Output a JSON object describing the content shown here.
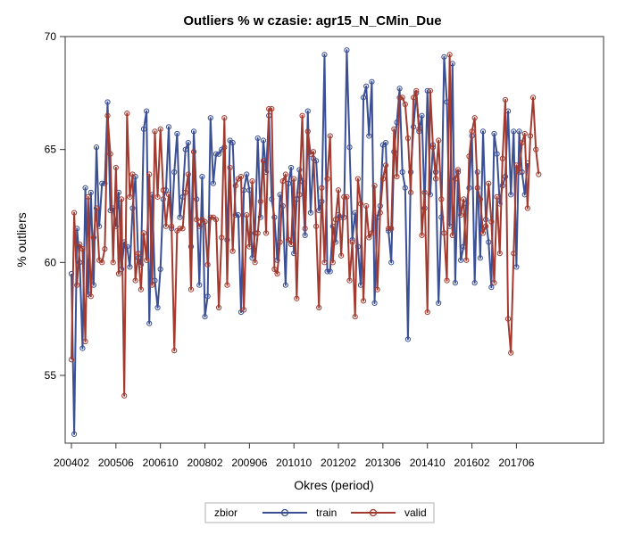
{
  "chart_data": {
    "type": "line",
    "title": "Outliers % w czasie: agr15_N_CMin_Due",
    "xlabel": "Okres (period)",
    "ylabel": "% outliers",
    "ylim": [
      52,
      70
    ],
    "yticks": [
      55,
      60,
      65,
      70
    ],
    "xticks": [
      "200402",
      "200506",
      "200610",
      "200802",
      "200906",
      "201010",
      "201202",
      "201306",
      "201410",
      "201602",
      "201706"
    ],
    "x_start": "2004-02",
    "x_step": "1 month",
    "x_count": 167,
    "legend": {
      "title": "zbior",
      "position": "bottom-center"
    },
    "grid": false,
    "series": [
      {
        "name": "train",
        "color": "#3B4F94",
        "values": [
          59.5,
          52.4,
          61.5,
          60.0,
          56.2,
          63.3,
          58.6,
          63.1,
          59.0,
          65.1,
          61.6,
          63.5,
          63.5,
          67.1,
          62.3,
          62.4,
          61.6,
          63.1,
          59.7,
          60.9,
          60.7,
          59.8,
          62.4,
          63.8,
          60.2,
          59.9,
          65.9,
          66.7,
          57.3,
          63.0,
          59.2,
          58.0,
          59.7,
          62.8,
          63.2,
          66.0,
          61.5,
          64.0,
          65.7,
          62.0,
          62.9,
          65.0,
          65.3,
          60.7,
          65.8,
          62.8,
          59.0,
          63.8,
          57.6,
          58.5,
          66.4,
          63.5,
          64.8,
          64.8,
          65.0,
          65.1,
          61.0,
          65.4,
          65.3,
          62.1,
          62.1,
          57.8,
          63.2,
          63.9,
          63.2,
          60.2,
          61.3,
          65.5,
          62.0,
          65.4,
          64.0,
          66.5,
          62.8,
          62.0,
          60.1,
          63.0,
          62.5,
          59.0,
          63.5,
          64.2,
          60.4,
          62.8,
          64.1,
          63.6,
          61.2,
          66.7,
          62.2,
          64.6,
          64.5,
          62.3,
          62.7,
          69.2,
          59.6,
          59.6,
          61.6,
          60.9,
          62.1,
          62.0,
          62.0,
          69.4,
          65.1,
          61.0,
          62.2,
          60.7,
          59.0,
          67.3,
          67.8,
          65.6,
          68.0,
          58.2,
          62.0,
          62.5,
          65.2,
          65.3,
          61.4,
          60.0,
          64.9,
          66.2,
          67.7,
          64.0,
          63.3,
          56.6,
          64.0,
          66.0,
          67.5,
          65.8,
          66.5,
          62.4,
          67.6,
          63.0,
          65.2,
          64.0,
          58.2,
          62.0,
          69.1,
          67.1,
          61.6,
          68.8,
          59.1,
          64.0,
          60.1,
          60.7,
          62.6,
          63.3,
          65.6,
          59.1,
          64.0,
          60.2,
          65.8,
          61.9,
          60.9,
          58.9,
          65.7,
          64.8,
          62.6,
          63.4,
          63.8,
          66.7,
          63.0,
          65.8,
          59.8,
          65.8,
          64.0,
          63.0,
          64.4
        ]
      },
      {
        "name": "valid",
        "color": "#A23A2F",
        "values": [
          55.7,
          62.2,
          59.0,
          60.8,
          60.6,
          56.5,
          62.9,
          58.5,
          61.1,
          62.4,
          60.1,
          60.0,
          60.6,
          66.5,
          64.8,
          60.0,
          64.2,
          59.5,
          62.8,
          54.1,
          66.6,
          62.9,
          63.9,
          59.2,
          60.4,
          58.8,
          61.3,
          60.1,
          63.9,
          59.0,
          65.8,
          62.9,
          65.9,
          63.2,
          61.6,
          63.0,
          61.6,
          56.1,
          61.4,
          61.5,
          61.5,
          63.1,
          63.9,
          58.8,
          64.9,
          61.9,
          61.6,
          61.9,
          61.8,
          59.9,
          62.0,
          62.0,
          61.9,
          58.0,
          61.1,
          66.4,
          59.0,
          64.2,
          60.5,
          63.4,
          63.7,
          63.8,
          57.9,
          62.1,
          60.7,
          63.6,
          60.0,
          61.3,
          62.7,
          64.5,
          61.3,
          66.8,
          66.8,
          59.7,
          59.5,
          60.9,
          63.6,
          63.9,
          61.0,
          60.8,
          63.7,
          58.4,
          63.0,
          66.5,
          61.5,
          65.8,
          64.8,
          64.9,
          61.6,
          58.0,
          63.3,
          60.0,
          63.7,
          65.6,
          60.0,
          61.9,
          63.2,
          60.3,
          62.9,
          62.9,
          59.2,
          60.9,
          57.6,
          63.7,
          62.6,
          58.3,
          62.5,
          61.1,
          61.3,
          63.4,
          58.8,
          62.2,
          63.7,
          64.3,
          61.5,
          61.5,
          65.9,
          63.8,
          67.3,
          67.3,
          67.0,
          65.5,
          63.1,
          67.3,
          67.6,
          65.9,
          61.2,
          63.1,
          57.8,
          67.6,
          65.1,
          63.7,
          65.4,
          62.8,
          61.3,
          59.2,
          69.2,
          61.2,
          63.7,
          64.1,
          62.1,
          62.8,
          60.1,
          64.7,
          65.8,
          66.4,
          63.3,
          62.8,
          61.3,
          61.6,
          63.5,
          61.8,
          59.1,
          62.9,
          60.4,
          64.6,
          67.2,
          57.5,
          56.0,
          60.4,
          64.3,
          64.0,
          65.3,
          65.7,
          62.4,
          65.6,
          67.3,
          65.0,
          63.9
        ]
      }
    ]
  }
}
